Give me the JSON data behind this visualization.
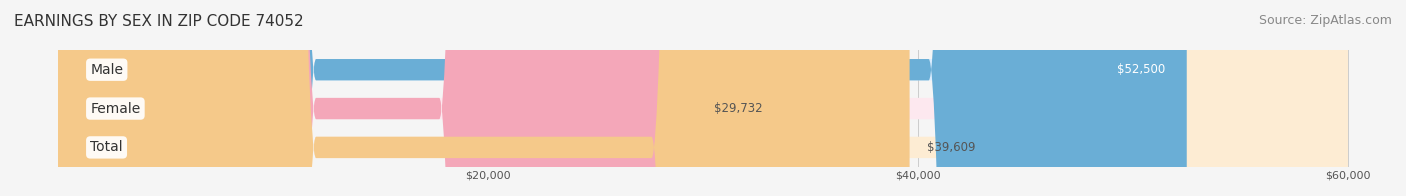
{
  "title": "EARNINGS BY SEX IN ZIP CODE 74052",
  "source": "Source: ZipAtlas.com",
  "categories": [
    "Male",
    "Female",
    "Total"
  ],
  "values": [
    52500,
    29732,
    39609
  ],
  "bar_colors": [
    "#6aaed6",
    "#f4a7b9",
    "#f5c98a"
  ],
  "bar_bg_colors": [
    "#ddeeff",
    "#fde8ef",
    "#fdecd3"
  ],
  "label_colors": [
    "#ffffff",
    "#555555",
    "#555555"
  ],
  "value_labels": [
    "$52,500",
    "$29,732",
    "$39,609"
  ],
  "xlabel": "",
  "xlim": [
    0,
    60000
  ],
  "xticks": [
    20000,
    40000,
    60000
  ],
  "xtick_labels": [
    "$20,000",
    "$40,000",
    "$60,000"
  ],
  "background_color": "#f5f5f5",
  "bar_background_color": "#efefef",
  "title_fontsize": 11,
  "source_fontsize": 9,
  "bar_height": 0.55,
  "y_label_fontsize": 10
}
